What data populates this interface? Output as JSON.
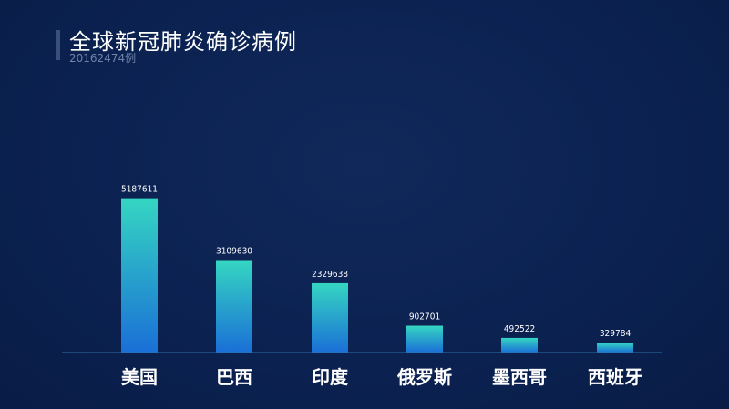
{
  "header": {
    "title": "全球新冠肺炎确诊病例",
    "subtitle": "20162474例"
  },
  "colors": {
    "background": "#0c2350",
    "bar_top": "#35d6c2",
    "bar_bottom": "#1a6fd6",
    "baseline": "#2f6fa8",
    "text": "#ffffff"
  },
  "chart_data": {
    "type": "bar",
    "title": "全球新冠肺炎确诊病例",
    "subtitle": "20162474例",
    "categories": [
      "美国",
      "巴西",
      "印度",
      "俄罗斯",
      "墨西哥",
      "西班牙"
    ],
    "values": [
      5187611,
      3109630,
      2329638,
      902701,
      492522,
      329784
    ],
    "ylim": [
      0,
      5850000
    ],
    "grid": false,
    "legend": "none"
  }
}
